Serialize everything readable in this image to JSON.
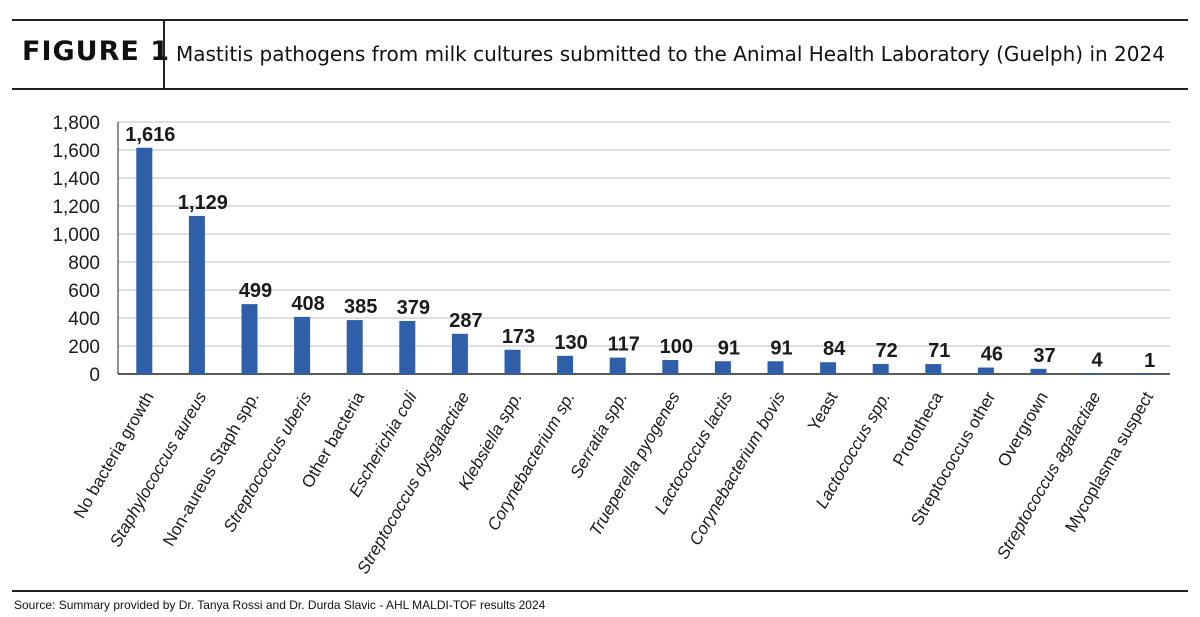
{
  "figure": {
    "label": "FIGURE 1",
    "title": "Mastitis pathogens from milk cultures submitted to the Animal Health Laboratory (Guelph) in 2024",
    "source": "Source: Summary provided by Dr. Tanya Rossi and Dr. Durda Slavic - AHL MALDI-TOF results 2024"
  },
  "colors": {
    "bar": "#2e5fa8",
    "grid": "#bdbdbd",
    "axis": "#222222"
  },
  "chart_data": {
    "type": "bar",
    "title": "",
    "xlabel": "",
    "ylabel": "",
    "ylim": [
      0,
      1800
    ],
    "yticks": [
      0,
      200,
      400,
      600,
      800,
      1000,
      1200,
      1400,
      1600,
      1800
    ],
    "ytick_labels": [
      "0",
      "200",
      "400",
      "600",
      "800",
      "1,000",
      "1,200",
      "1,400",
      "1,600",
      "1,800"
    ],
    "grid": true,
    "categories": [
      "No bacteria growth",
      "Staphylococcus aureus",
      "Non-aureus Staph spp.",
      "Streptococcus uberis",
      "Other bacteria",
      "Escherichia coli",
      "Streptococcus dysgalactiae",
      "Klebsiella spp.",
      "Corynebacterium sp.",
      "Serratia spp.",
      "Trueperella pyogenes",
      "Lactococcus lactis",
      "Corynebacterium bovis",
      "Yeast",
      "Lactococcus spp.",
      "Prototheca",
      "Streptococcus other",
      "Overgrown",
      "Streptococcus agalactiae",
      "Mycoplasma suspect"
    ],
    "italic": [
      false,
      true,
      false,
      true,
      false,
      true,
      true,
      true,
      true,
      true,
      true,
      true,
      true,
      false,
      true,
      false,
      false,
      false,
      true,
      false
    ],
    "values": [
      1616,
      1129,
      499,
      408,
      385,
      379,
      287,
      173,
      130,
      117,
      100,
      91,
      91,
      84,
      72,
      71,
      46,
      37,
      4,
      1
    ],
    "value_labels": [
      "1,616",
      "1,129",
      "499",
      "408",
      "385",
      "379",
      "287",
      "173",
      "130",
      "117",
      "100",
      "91",
      "91",
      "84",
      "72",
      "71",
      "46",
      "37",
      "4",
      "1"
    ]
  }
}
